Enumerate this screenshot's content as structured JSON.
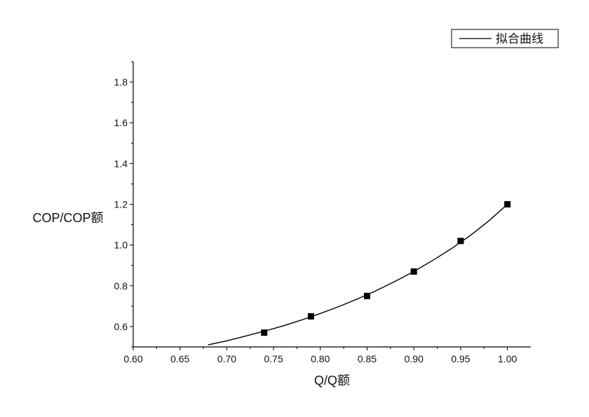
{
  "chart_data": {
    "type": "scatter",
    "xlabel": "Q/Q额",
    "ylabel": "COP/COP额",
    "xlim": [
      0.6,
      1.025
    ],
    "ylim": [
      0.5,
      1.9
    ],
    "x_ticks": [
      "0.60",
      "0.65",
      "0.70",
      "0.75",
      "0.80",
      "0.85",
      "0.90",
      "0.95",
      "1.00"
    ],
    "y_ticks": [
      "0.6",
      "0.8",
      "1.0",
      "1.2",
      "1.4",
      "1.6",
      "1.8"
    ],
    "legend": {
      "position": "top-right",
      "entries": [
        "拟合曲线"
      ]
    },
    "grid": false,
    "series": [
      {
        "kind": "points",
        "marker": "square",
        "color": "#000000",
        "x": [
          0.74,
          0.79,
          0.85,
          0.9,
          0.95,
          1.0
        ],
        "y": [
          0.57,
          0.65,
          0.75,
          0.87,
          1.02,
          1.2
        ]
      },
      {
        "name": "拟合曲线",
        "kind": "line",
        "color": "#000000",
        "x": [
          0.68,
          0.7,
          0.72,
          0.74,
          0.76,
          0.78,
          0.8,
          0.82,
          0.84,
          0.86,
          0.88,
          0.9,
          0.92,
          0.94,
          0.96,
          0.98,
          1.0
        ],
        "y": [
          0.51,
          0.53,
          0.553,
          0.577,
          0.603,
          0.632,
          0.664,
          0.698,
          0.736,
          0.777,
          0.822,
          0.87,
          0.924,
          0.982,
          1.046,
          1.118,
          1.2
        ]
      }
    ]
  }
}
